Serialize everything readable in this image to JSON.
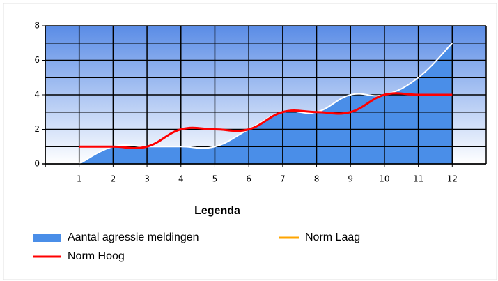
{
  "chart_data": {
    "type": "area",
    "categories": [
      "1",
      "2",
      "3",
      "4",
      "5",
      "6",
      "7",
      "8",
      "9",
      "10",
      "11",
      "12"
    ],
    "series": [
      {
        "name": "Aantal agressie meldingen",
        "color": "#4a8ee8",
        "line_color": "#ffffff",
        "kind": "area",
        "values": [
          0,
          1,
          1,
          1,
          1,
          2,
          3,
          3,
          4,
          4,
          5,
          7
        ]
      },
      {
        "name": "Norm Laag",
        "color": "#ffa500",
        "kind": "line",
        "values": [
          null,
          null,
          null,
          null,
          null,
          null,
          null,
          null,
          null,
          null,
          null,
          null
        ]
      },
      {
        "name": "Norm Hoog",
        "color": "#ff0000",
        "kind": "line",
        "values": [
          1,
          1,
          1,
          2,
          2,
          2,
          3,
          3,
          3,
          4,
          4,
          4
        ]
      }
    ],
    "ylim": [
      0,
      8
    ],
    "yticks": [
      0,
      2,
      4,
      6,
      8
    ],
    "ygrid": [
      0,
      1,
      2,
      3,
      4,
      5,
      6,
      7,
      8
    ],
    "grid": true,
    "legend_title": "Legenda",
    "legend": "bottom"
  }
}
